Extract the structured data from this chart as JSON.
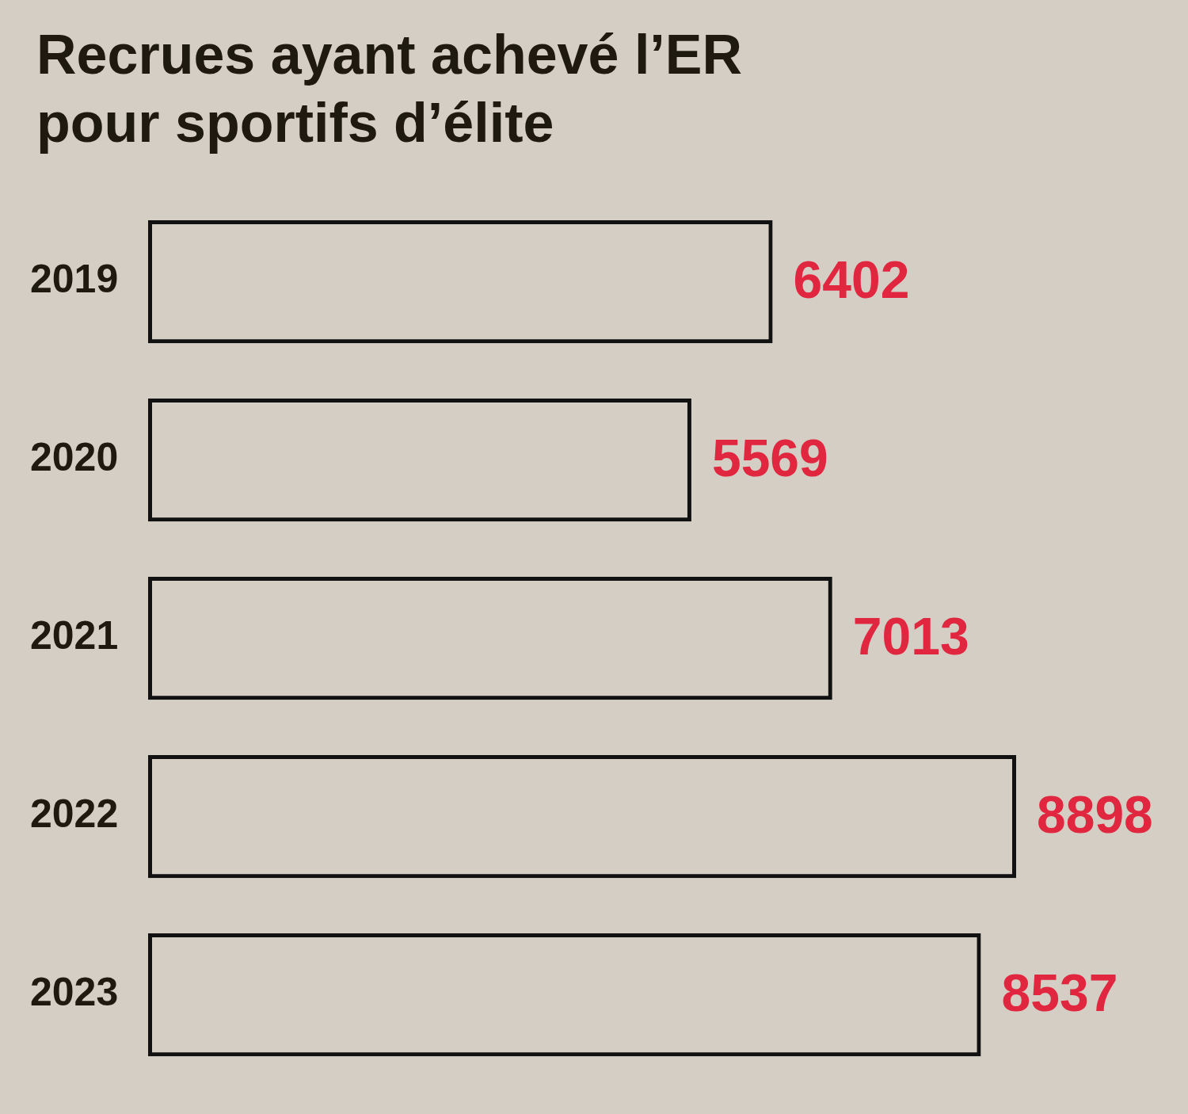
{
  "chart_data": {
    "type": "bar",
    "orientation": "horizontal",
    "title": "Recrues ayant achevé l’ER pour sportifs d’élite",
    "categories": [
      "2019",
      "2020",
      "2021",
      "2022",
      "2023"
    ],
    "values": [
      6402,
      5569,
      7013,
      8898,
      8537
    ],
    "color": "#111111",
    "data_labels": true,
    "tick_labels": "y"
  }
}
